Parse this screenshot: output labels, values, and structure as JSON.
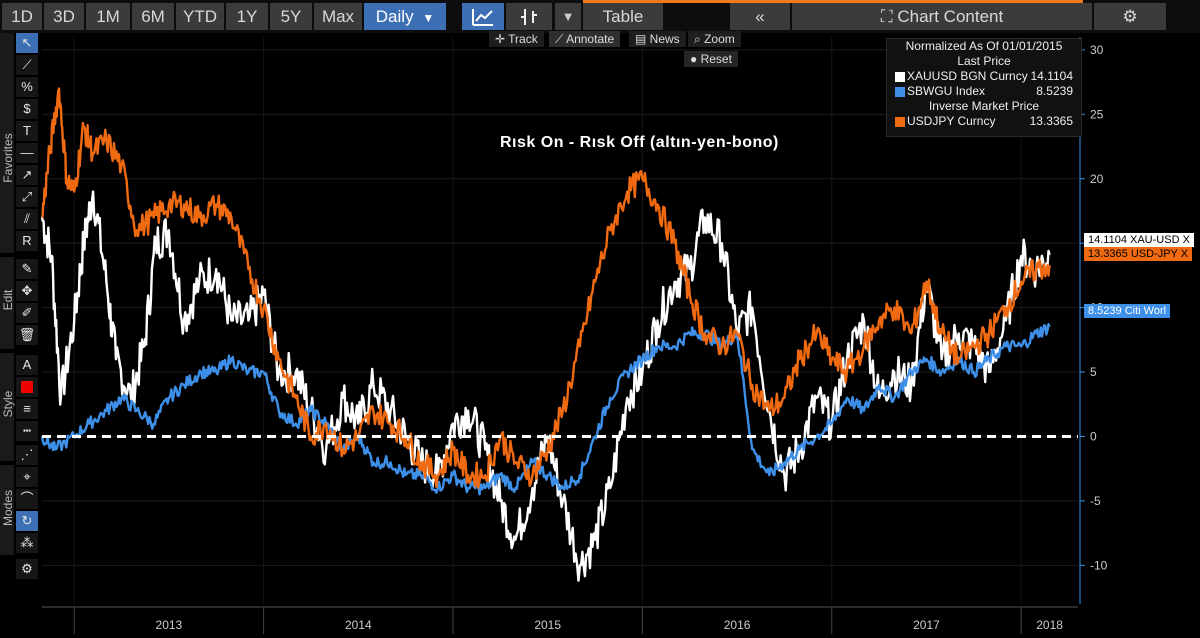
{
  "toolbar": {
    "ranges": [
      "1D",
      "3D",
      "1M",
      "6M",
      "YTD",
      "1Y",
      "5Y",
      "Max"
    ],
    "frequency": "Daily",
    "table_label": "Table",
    "chart_content_label": "Chart Content"
  },
  "chart_toolbar": {
    "track": "Track",
    "annotate": "Annotate",
    "news": "News",
    "zoom": "Zoom",
    "reset": "Reset"
  },
  "side_tabs": {
    "favorites": "Favorites",
    "edit": "Edit",
    "style": "Style",
    "modes": "Modes"
  },
  "legend": {
    "header": "Normalized As Of 01/01/2015",
    "section1": "Last Price",
    "section2": "Inverse Market Price",
    "rows": [
      {
        "name": "XAUUSD BGN Curncy",
        "value": "14.1104",
        "color": "#ffffff"
      },
      {
        "name": "SBWGU Index",
        "value": "8.5239",
        "color": "#3d8fe8"
      },
      {
        "name": "USDJPY Curncy",
        "value": "13.3365",
        "color": "#f06a12"
      }
    ]
  },
  "last_value_tags": {
    "xau": "14.1104 XAU-USD X",
    "usdjpy": "13.3365 USD-JPY X",
    "citi": "8.5239  Citi Worl"
  },
  "chart_data": {
    "type": "line",
    "title": "Rısk On - Rısk Off (altın-yen-bono)",
    "xlabel": "",
    "ylabel": "",
    "ylim": [
      -13,
      31
    ],
    "yticks": [
      -10,
      -5,
      0,
      5,
      10,
      15,
      20,
      25,
      30
    ],
    "xlim": [
      2012.83,
      2018.3
    ],
    "year_labels": [
      {
        "label": "2013",
        "x": 2013.0
      },
      {
        "label": "2014",
        "x": 2014.0
      },
      {
        "label": "2015",
        "x": 2015.0
      },
      {
        "label": "2016",
        "x": 2016.0
      },
      {
        "label": "2017",
        "x": 2017.0
      },
      {
        "label": "2018",
        "x": 2018.0
      }
    ],
    "reference_line": 0,
    "series": [
      {
        "name": "XAUUSD BGN Curncy",
        "color": "#ffffff",
        "x": [
          2012.83,
          2012.88,
          2012.93,
          2013.0,
          2013.05,
          2013.1,
          2013.17,
          2013.22,
          2013.3,
          2013.37,
          2013.43,
          2013.5,
          2013.58,
          2013.66,
          2013.75,
          2013.83,
          2013.92,
          2014.0,
          2014.08,
          2014.17,
          2014.25,
          2014.33,
          2014.42,
          2014.5,
          2014.58,
          2014.67,
          2014.75,
          2014.83,
          2014.92,
          2015.0,
          2015.08,
          2015.17,
          2015.25,
          2015.33,
          2015.42,
          2015.5,
          2015.58,
          2015.67,
          2015.75,
          2015.83,
          2015.92,
          2016.0,
          2016.08,
          2016.17,
          2016.25,
          2016.33,
          2016.42,
          2016.5,
          2016.58,
          2016.67,
          2016.75,
          2016.83,
          2016.92,
          2017.0,
          2017.08,
          2017.17,
          2017.25,
          2017.33,
          2017.42,
          2017.5,
          2017.58,
          2017.67,
          2017.75,
          2017.83,
          2017.92,
          2018.0,
          2018.08,
          2018.15
        ],
        "values": [
          17,
          14,
          3,
          9,
          15,
          19,
          12,
          6,
          3,
          7,
          15,
          16,
          9,
          12,
          13,
          9,
          9,
          11,
          5,
          5,
          2,
          -1,
          3,
          1,
          4,
          2,
          0,
          -2,
          -3,
          1,
          2,
          -1,
          -5,
          -8,
          -4,
          0,
          -5,
          -10,
          -8,
          -4,
          3,
          5,
          9,
          12,
          13,
          17,
          15,
          8,
          10,
          2,
          -3,
          -1,
          3,
          1,
          6,
          9,
          3,
          5,
          4,
          12,
          6,
          8,
          7,
          5,
          9,
          14,
          13,
          14.1
        ]
      },
      {
        "name": "SBWGU Index",
        "color": "#3d8fe8",
        "x": [
          2012.83,
          2012.9,
          2013.0,
          2013.08,
          2013.17,
          2013.25,
          2013.33,
          2013.42,
          2013.5,
          2013.58,
          2013.67,
          2013.75,
          2013.83,
          2013.92,
          2014.0,
          2014.08,
          2014.17,
          2014.25,
          2014.33,
          2014.42,
          2014.5,
          2014.58,
          2014.67,
          2014.75,
          2014.83,
          2014.92,
          2015.0,
          2015.08,
          2015.17,
          2015.25,
          2015.33,
          2015.42,
          2015.5,
          2015.58,
          2015.67,
          2015.75,
          2015.83,
          2015.92,
          2016.0,
          2016.08,
          2016.17,
          2016.25,
          2016.33,
          2016.42,
          2016.5,
          2016.58,
          2016.67,
          2016.75,
          2016.83,
          2016.92,
          2017.0,
          2017.08,
          2017.17,
          2017.25,
          2017.33,
          2017.42,
          2017.5,
          2017.58,
          2017.67,
          2017.75,
          2017.83,
          2017.92,
          2018.0,
          2018.08,
          2018.15
        ],
        "values": [
          0,
          -1,
          0,
          1,
          2,
          3,
          2,
          1,
          3,
          4,
          5,
          5,
          6,
          5,
          5,
          2,
          1,
          2,
          1,
          -1,
          0,
          -2,
          -2,
          -3,
          -3,
          -4,
          -3,
          -4,
          -4,
          -3,
          -4,
          -2,
          -3,
          -4,
          -3,
          0,
          3,
          5,
          6,
          7,
          7,
          8,
          8,
          7,
          8,
          -1,
          -3,
          -2,
          -1,
          0,
          1,
          3,
          2,
          4,
          3,
          5,
          6,
          5,
          6,
          5,
          6,
          7,
          7,
          8,
          8.5
        ]
      },
      {
        "name": "USDJPY Curncy",
        "color": "#f06a12",
        "x": [
          2012.83,
          2012.87,
          2012.92,
          2012.96,
          2013.0,
          2013.05,
          2013.1,
          2013.17,
          2013.25,
          2013.33,
          2013.42,
          2013.5,
          2013.58,
          2013.66,
          2013.75,
          2013.83,
          2013.92,
          2014.0,
          2014.08,
          2014.17,
          2014.25,
          2014.33,
          2014.42,
          2014.5,
          2014.58,
          2014.67,
          2014.75,
          2014.83,
          2014.92,
          2015.0,
          2015.08,
          2015.17,
          2015.25,
          2015.33,
          2015.42,
          2015.5,
          2015.58,
          2015.67,
          2015.75,
          2015.83,
          2015.92,
          2016.0,
          2016.08,
          2016.17,
          2016.25,
          2016.33,
          2016.42,
          2016.5,
          2016.58,
          2016.67,
          2016.75,
          2016.83,
          2016.92,
          2017.0,
          2017.08,
          2017.17,
          2017.25,
          2017.33,
          2017.42,
          2017.5,
          2017.58,
          2017.67,
          2017.75,
          2017.83,
          2017.92,
          2018.0,
          2018.08,
          2018.15
        ],
        "values": [
          17,
          22,
          27,
          20,
          19,
          24,
          22,
          23,
          21,
          16,
          17,
          18,
          18,
          17,
          18,
          17,
          13,
          10,
          6,
          3,
          0,
          1,
          -1,
          0,
          2,
          1,
          0,
          -2,
          -3,
          -1,
          -3,
          -3,
          0,
          -2,
          -3,
          -1,
          2,
          7,
          12,
          16,
          19,
          20,
          18,
          15,
          11,
          8,
          7,
          8,
          4,
          2,
          3,
          6,
          8,
          6,
          5,
          7,
          9,
          10,
          8,
          12,
          8,
          6,
          7,
          8,
          10,
          12,
          13,
          13.3
        ]
      }
    ]
  }
}
